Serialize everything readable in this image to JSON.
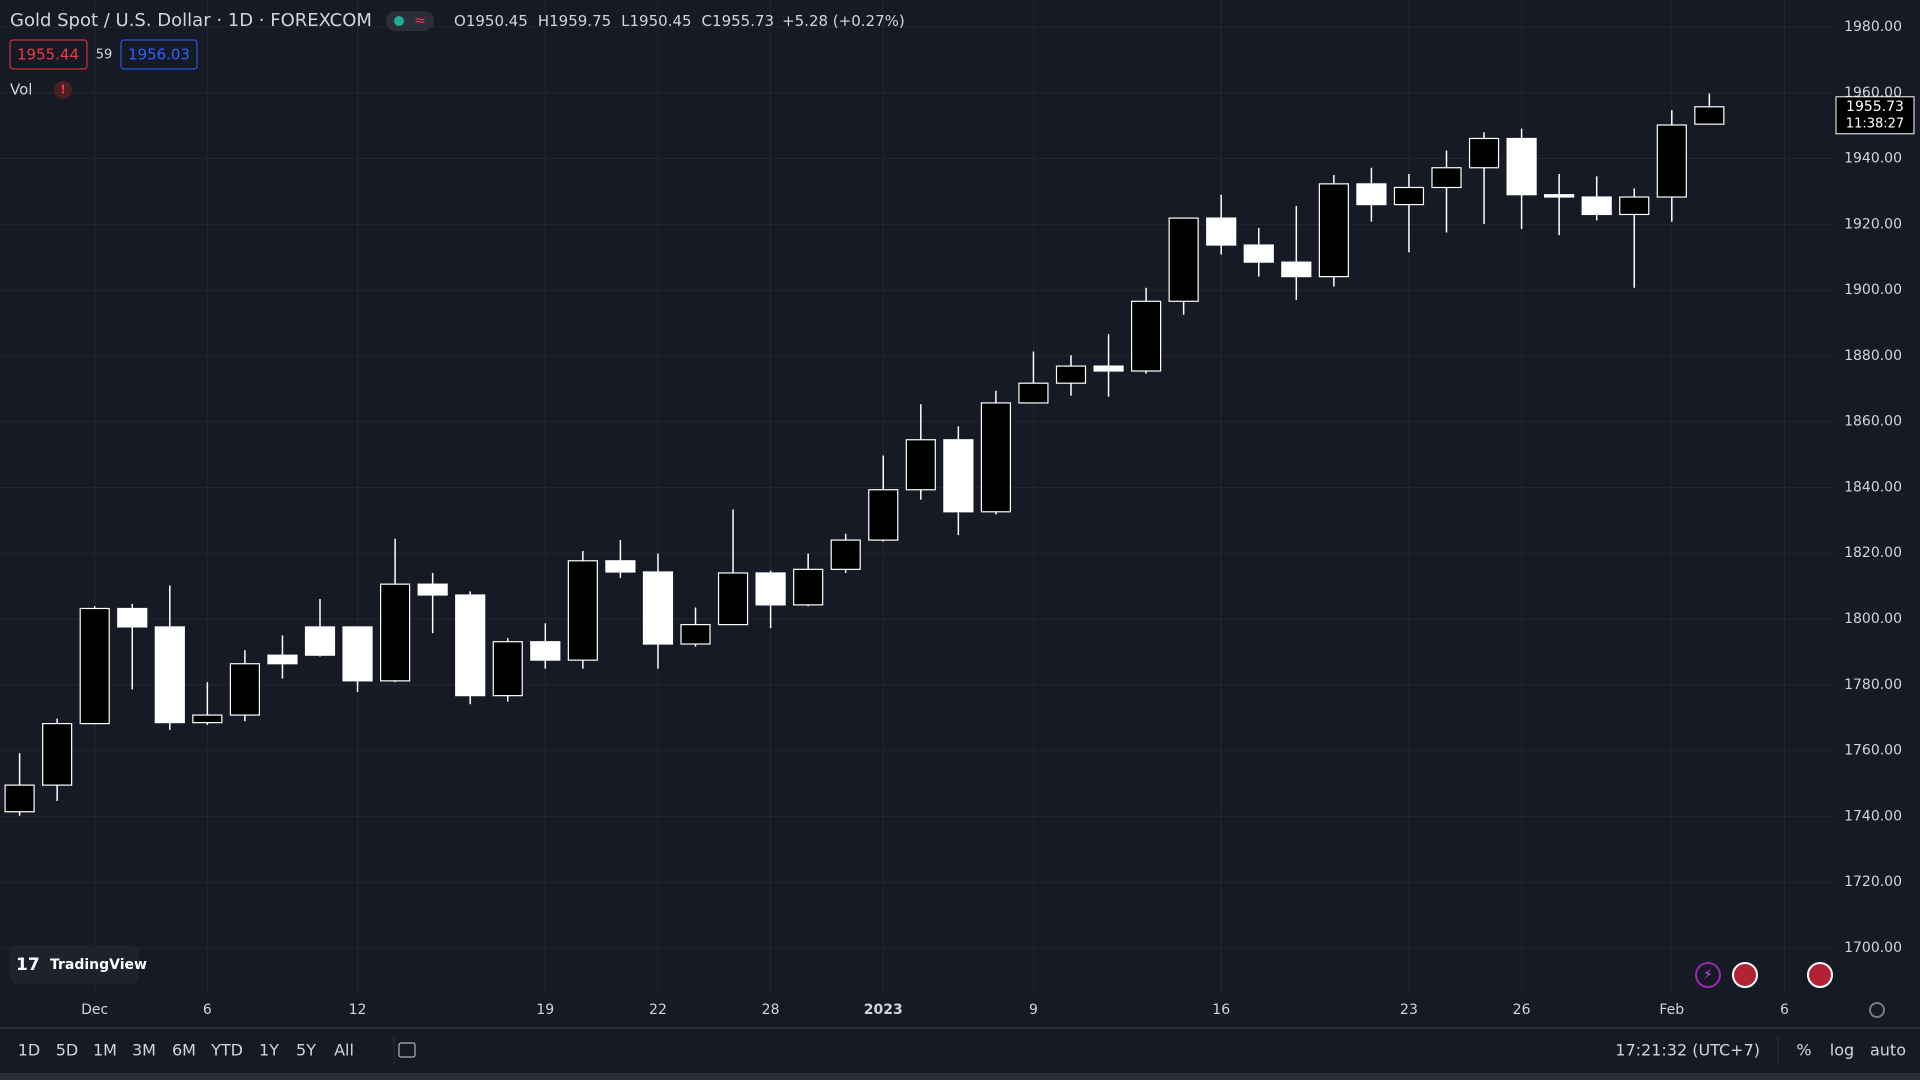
{
  "chart_data": {
    "type": "candlestick",
    "title": "Gold Spot / U.S. Dollar · 1D · FOREXCOM",
    "ohlc_labels": [
      "O",
      "H",
      "L",
      "C"
    ],
    "change": "+5.28 (+0.27%)",
    "bid": "1955.44",
    "spread": "59",
    "ask": "1956.03",
    "volume_label": "Vol",
    "countdown": "11:38:27",
    "categories": [
      null,
      null,
      "Dec",
      null,
      null,
      "6",
      null,
      null,
      null,
      "12",
      null,
      null,
      null,
      null,
      "19",
      null,
      null,
      "22",
      null,
      null,
      "28",
      null,
      null,
      "2023",
      null,
      null,
      null,
      "9",
      null,
      null,
      null,
      null,
      "16",
      null,
      null,
      null,
      null,
      "23",
      null,
      null,
      "26",
      null,
      null,
      null,
      "Feb",
      null,
      null,
      "6"
    ],
    "open": [
      1741.4,
      1749.5,
      1768.2,
      1803.2,
      1797.6,
      1768.5,
      1770.8,
      1789.0,
      1797.6,
      1797.6,
      1781.2,
      1810.6,
      1807.3,
      1776.7,
      1793.1,
      1787.5,
      1817.7,
      1814.3,
      1792.4,
      1798.3,
      1814.0,
      1804.3,
      1815.1,
      1824.0,
      1839.3,
      1854.5,
      1832.6,
      1865.7,
      1871.7,
      1876.9,
      1875.4,
      1896.6,
      1921.9,
      1913.7,
      1908.5,
      1904.1,
      1932.3,
      1926.0,
      1931.2,
      1937.2,
      1946.1,
      1929.0,
      1928.3,
      1923.0,
      1928.3,
      1950.45,
      null,
      null
    ],
    "high": [
      1759.2,
      1769.7,
      1803.9,
      1804.6,
      1810.2,
      1780.8,
      1790.5,
      1795.0,
      1806.1,
      1797.6,
      1824.4,
      1814.0,
      1808.4,
      1794.2,
      1798.7,
      1820.7,
      1824.0,
      1819.9,
      1803.5,
      1833.3,
      1814.7,
      1819.9,
      1825.9,
      1849.7,
      1865.3,
      1858.6,
      1869.4,
      1881.3,
      1880.2,
      1886.6,
      1900.7,
      1921.9,
      1929.0,
      1918.9,
      1925.6,
      1935.0,
      1937.2,
      1935.3,
      1942.4,
      1948.0,
      1949.1,
      1935.3,
      1934.6,
      1930.9,
      1954.7,
      1959.75,
      null,
      null
    ],
    "low": [
      1740.2,
      1744.7,
      1768.0,
      1778.6,
      1766.3,
      1767.8,
      1768.9,
      1781.9,
      1788.6,
      1777.8,
      1780.8,
      1795.7,
      1774.1,
      1774.9,
      1784.9,
      1784.9,
      1812.5,
      1784.9,
      1791.6,
      1798.3,
      1797.2,
      1803.9,
      1814.0,
      1823.6,
      1836.3,
      1825.5,
      1831.8,
      1865.7,
      1867.9,
      1867.6,
      1874.6,
      1892.5,
      1910.8,
      1904.1,
      1897.0,
      1901.1,
      1920.8,
      1911.5,
      1917.5,
      1920.1,
      1918.6,
      1916.7,
      1921.2,
      1900.7,
      1920.8,
      1950.45,
      null,
      null
    ],
    "close": [
      1749.5,
      1768.2,
      1803.2,
      1797.6,
      1768.5,
      1770.8,
      1786.4,
      1786.4,
      1789.0,
      1781.2,
      1810.6,
      1807.3,
      1776.7,
      1793.1,
      1787.5,
      1817.7,
      1814.3,
      1792.4,
      1798.3,
      1814.0,
      1804.3,
      1815.1,
      1824.0,
      1839.3,
      1854.5,
      1832.6,
      1865.7,
      1871.7,
      1876.9,
      1875.4,
      1896.6,
      1921.9,
      1913.7,
      1908.5,
      1904.1,
      1932.3,
      1926.0,
      1931.2,
      1937.2,
      1946.1,
      1929.0,
      1928.3,
      1923.0,
      1928.3,
      1950.2,
      1955.73,
      null,
      null
    ],
    "up_color": "#000000",
    "down_color": "#ffffff",
    "wick_color": "#ffffff",
    "ylim": [
      1686.6,
      1988.2
    ],
    "yticks": [
      {
        "value": 1700,
        "label": "1700.00"
      },
      {
        "value": 1720,
        "label": "1720.00"
      },
      {
        "value": 1740,
        "label": "1740.00"
      },
      {
        "value": 1760,
        "label": "1760.00"
      },
      {
        "value": 1780,
        "label": "1780.00"
      },
      {
        "value": 1800,
        "label": "1800.00"
      },
      {
        "value": 1820,
        "label": "1820.00"
      },
      {
        "value": 1840,
        "label": "1840.00"
      },
      {
        "value": 1860,
        "label": "1860.00"
      },
      {
        "value": 1880,
        "label": "1880.00"
      },
      {
        "value": 1900,
        "label": "1900.00"
      },
      {
        "value": 1920,
        "label": "1920.00"
      },
      {
        "value": 1940,
        "label": "1940.00"
      },
      {
        "value": 1960,
        "label": "1960.00"
      },
      {
        "value": 1980,
        "label": "1980.00"
      }
    ],
    "grid": true
  },
  "branding": "TradingView",
  "toolbar": {
    "ranges": [
      "1D",
      "5D",
      "1M",
      "3M",
      "6M",
      "YTD",
      "1Y",
      "5Y",
      "All"
    ],
    "clock": "17:21:32 (UTC+7)",
    "scale_options": [
      "%",
      "log",
      "auto"
    ]
  }
}
